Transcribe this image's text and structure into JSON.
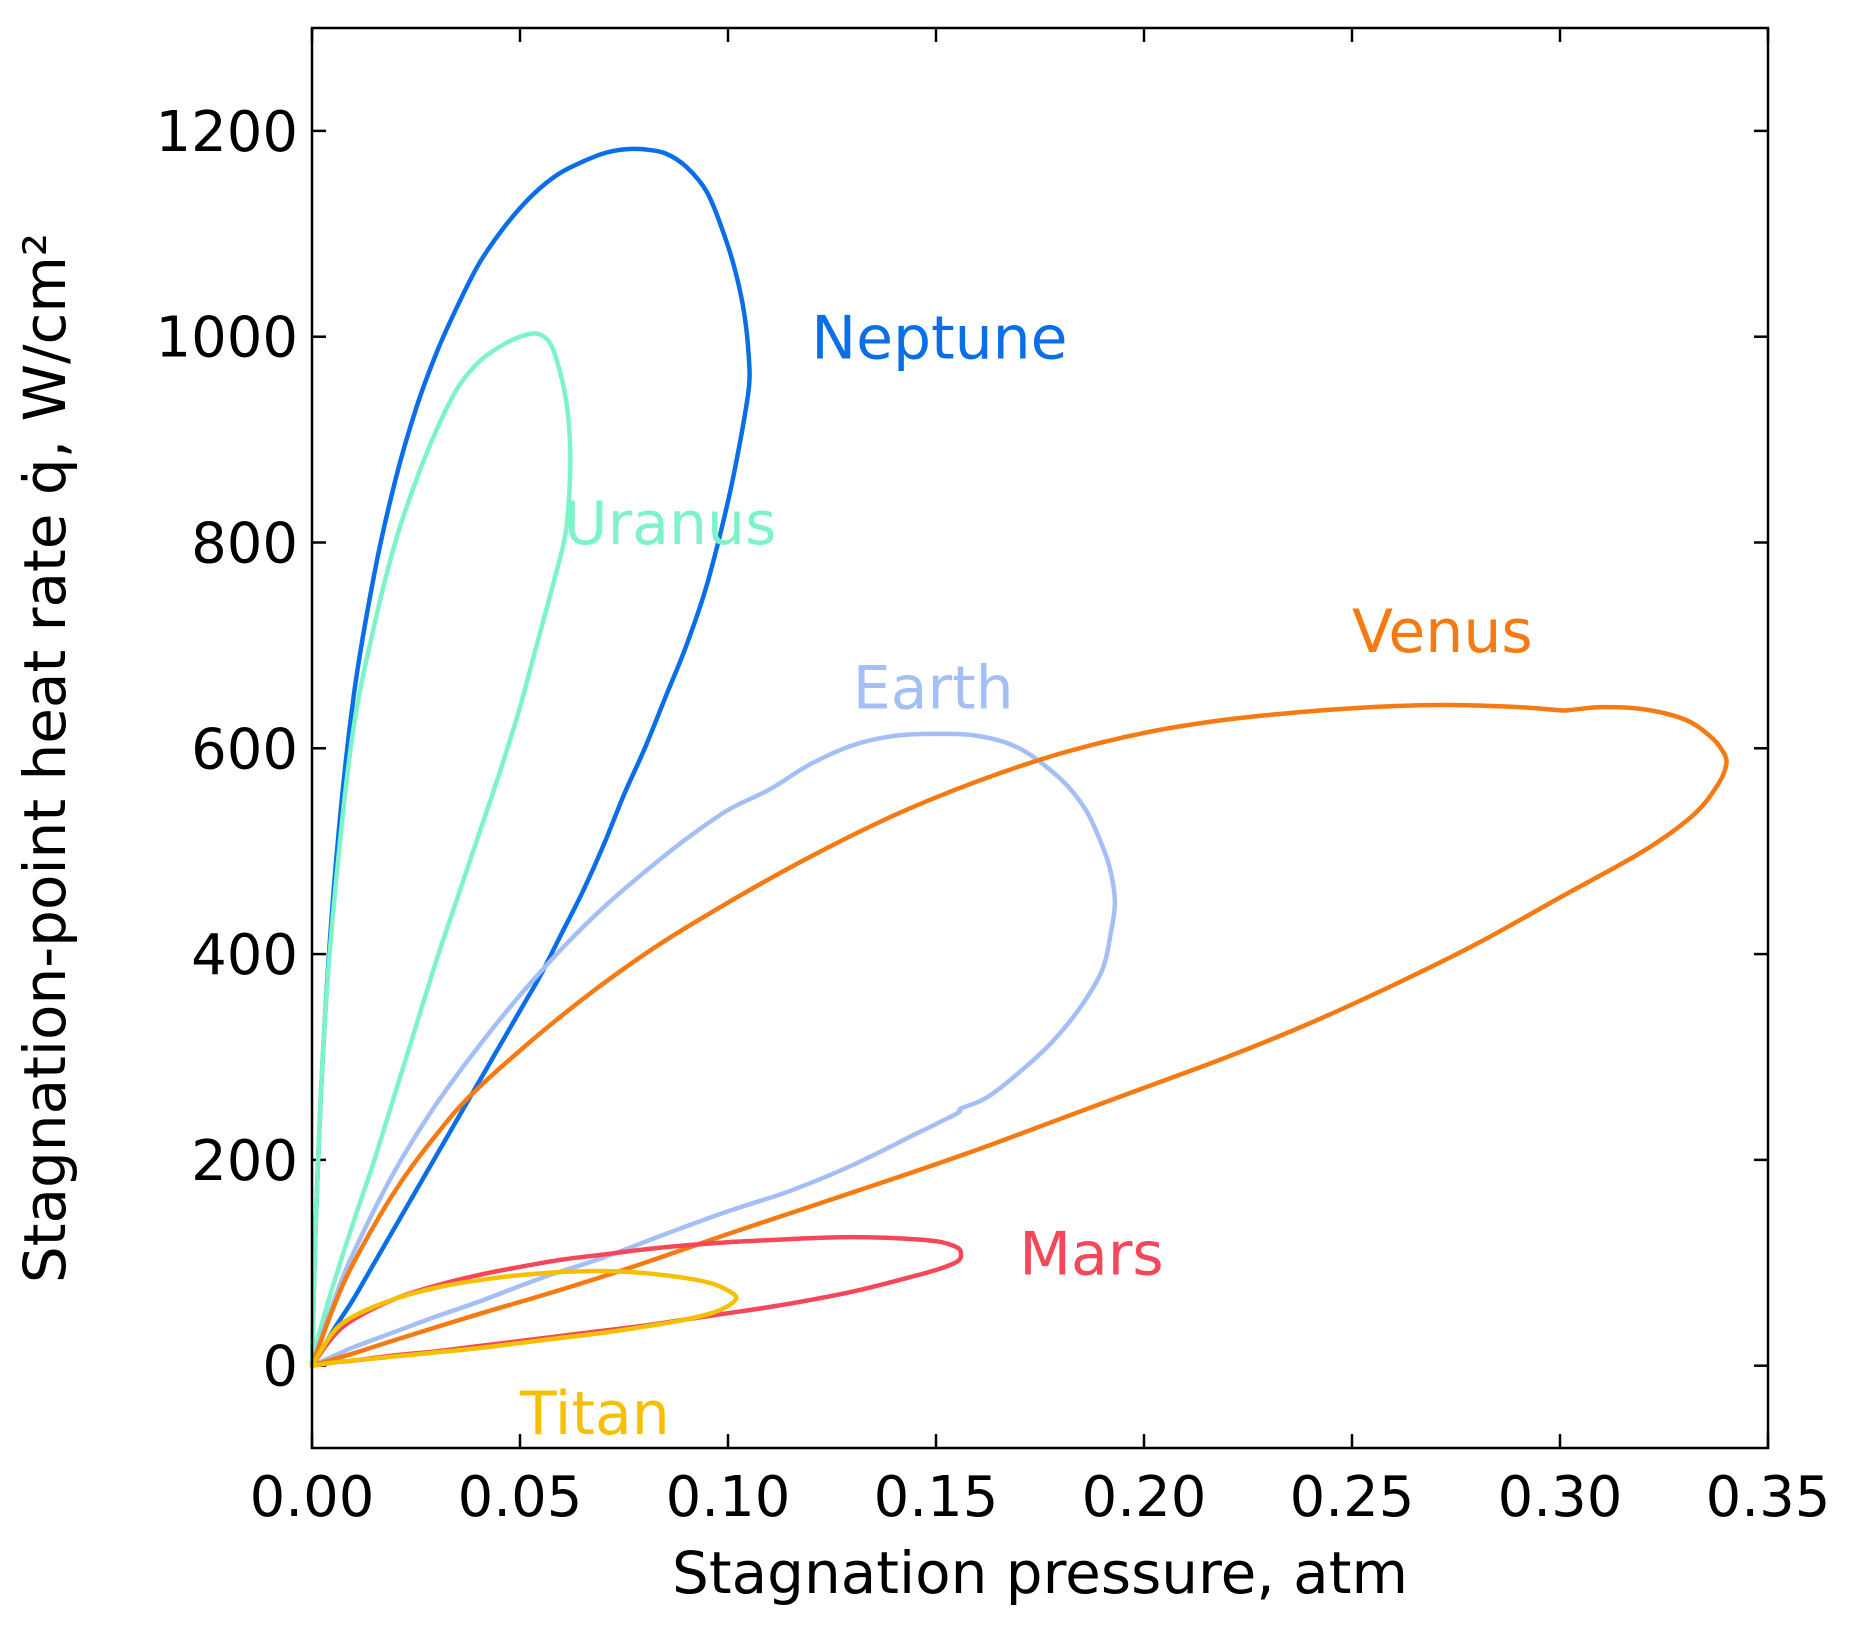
{
  "chart_data": {
    "type": "line",
    "xlabel": "Stagnation pressure, atm",
    "ylabel": "Stagnation-point heat rate q̇, W/cm²",
    "xlim": [
      0,
      0.35
    ],
    "ylim": [
      -80,
      1300
    ],
    "x_ticks": [
      0.0,
      0.05,
      0.1,
      0.15,
      0.2,
      0.25,
      0.3,
      0.35
    ],
    "x_tick_labels": [
      "0.00",
      "0.05",
      "0.10",
      "0.15",
      "0.20",
      "0.25",
      "0.30",
      "0.35"
    ],
    "y_ticks": [
      0,
      200,
      400,
      600,
      800,
      1000,
      1200
    ],
    "y_tick_labels": [
      "0",
      "200",
      "400",
      "600",
      "800",
      "1000",
      "1200"
    ],
    "grid": false,
    "series": [
      {
        "name": "Neptune",
        "color": "#0a6fe6",
        "label_at": [
          0.12,
          1000
        ],
        "x": [
          0,
          0.001,
          0.003,
          0.006,
          0.01,
          0.015,
          0.02,
          0.025,
          0.03,
          0.035,
          0.04,
          0.045,
          0.05,
          0.055,
          0.06,
          0.065,
          0.07,
          0.075,
          0.08,
          0.085,
          0.09,
          0.095,
          0.099,
          0.102,
          0.104,
          0.105,
          0.105,
          0.103,
          0.1,
          0.095,
          0.09,
          0.085,
          0.08,
          0.075,
          0.07,
          0.065,
          0.06,
          0.055,
          0.05,
          0.045,
          0.04,
          0.035,
          0.03,
          0.025,
          0.02,
          0.015,
          0.01,
          0.006,
          0.003,
          0.001,
          0
        ],
        "y": [
          0,
          150,
          330,
          500,
          650,
          770,
          860,
          930,
          985,
          1030,
          1070,
          1100,
          1125,
          1145,
          1160,
          1170,
          1178,
          1182,
          1182,
          1178,
          1165,
          1140,
          1100,
          1060,
          1020,
          980,
          950,
          900,
          840,
          760,
          700,
          650,
          600,
          555,
          505,
          460,
          420,
          380,
          345,
          310,
          275,
          240,
          205,
          170,
          135,
          100,
          65,
          40,
          20,
          8,
          0
        ]
      },
      {
        "name": "Uranus",
        "color": "#7df3c8",
        "label_at": [
          0.0605,
          820
        ],
        "x": [
          0,
          0.001,
          0.003,
          0.006,
          0.01,
          0.015,
          0.02,
          0.025,
          0.03,
          0.035,
          0.04,
          0.045,
          0.05,
          0.054,
          0.057,
          0.059,
          0.061,
          0.062,
          0.062,
          0.061,
          0.058,
          0.054,
          0.05,
          0.045,
          0.04,
          0.035,
          0.03,
          0.025,
          0.02,
          0.015,
          0.01,
          0.006,
          0.003,
          0.001,
          0
        ],
        "y": [
          0,
          150,
          330,
          480,
          620,
          720,
          800,
          860,
          910,
          950,
          975,
          990,
          1000,
          1003,
          995,
          975,
          940,
          900,
          860,
          810,
          760,
          700,
          640,
          575,
          515,
          455,
          395,
          330,
          265,
          200,
          140,
          90,
          50,
          20,
          0
        ]
      },
      {
        "name": "Earth",
        "color": "#a3bff5",
        "label_at": [
          0.13,
          660
        ],
        "x": [
          0,
          0.005,
          0.01,
          0.02,
          0.03,
          0.04,
          0.05,
          0.06,
          0.07,
          0.08,
          0.09,
          0.1,
          0.11,
          0.12,
          0.13,
          0.14,
          0.15,
          0.16,
          0.17,
          0.18,
          0.186,
          0.19,
          0.192,
          0.193,
          0.192,
          0.19,
          0.185,
          0.178,
          0.17,
          0.162,
          0.156,
          0.155,
          0.145,
          0.13,
          0.115,
          0.1,
          0.085,
          0.07,
          0.055,
          0.04,
          0.03,
          0.02,
          0.01,
          0.005,
          0
        ],
        "y": [
          0,
          60,
          110,
          190,
          255,
          310,
          360,
          405,
          445,
          480,
          512,
          540,
          560,
          585,
          603,
          612,
          614,
          612,
          600,
          570,
          540,
          505,
          480,
          450,
          420,
          385,
          350,
          315,
          285,
          260,
          250,
          245,
          225,
          195,
          170,
          150,
          128,
          105,
          85,
          62,
          48,
          33,
          18,
          9,
          0
        ]
      },
      {
        "name": "Venus",
        "color": "#f57a12",
        "label_at": [
          0.25,
          715
        ],
        "x": [
          0,
          0.005,
          0.01,
          0.02,
          0.03,
          0.04,
          0.06,
          0.08,
          0.1,
          0.12,
          0.14,
          0.16,
          0.18,
          0.2,
          0.22,
          0.24,
          0.26,
          0.275,
          0.29,
          0.3,
          0.302,
          0.31,
          0.32,
          0.33,
          0.336,
          0.339,
          0.34,
          0.338,
          0.332,
          0.32,
          0.3,
          0.28,
          0.26,
          0.24,
          0.22,
          0.2,
          0.18,
          0.16,
          0.14,
          0.12,
          0.1,
          0.08,
          0.06,
          0.04,
          0.02,
          0.01,
          0.005,
          0
        ],
        "y": [
          0,
          55,
          100,
          170,
          225,
          270,
          340,
          400,
          450,
          495,
          535,
          568,
          595,
          615,
          628,
          636,
          641,
          642,
          640,
          637,
          637,
          640,
          638,
          628,
          612,
          598,
          585,
          565,
          535,
          500,
          455,
          410,
          370,
          333,
          300,
          270,
          240,
          210,
          182,
          155,
          128,
          100,
          74,
          50,
          25,
          12,
          6,
          0
        ]
      },
      {
        "name": "Mars",
        "color": "#f5475a",
        "label_at": [
          0.17,
          110
        ],
        "x": [
          0,
          0.005,
          0.01,
          0.02,
          0.03,
          0.04,
          0.05,
          0.06,
          0.07,
          0.08,
          0.09,
          0.1,
          0.11,
          0.12,
          0.13,
          0.14,
          0.15,
          0.155,
          0.156,
          0.155,
          0.15,
          0.14,
          0.13,
          0.12,
          0.11,
          0.1,
          0.09,
          0.08,
          0.07,
          0.06,
          0.05,
          0.04,
          0.03,
          0.02,
          0.01,
          0.005,
          0
        ],
        "y": [
          0,
          28,
          45,
          65,
          78,
          88,
          96,
          103,
          108,
          113,
          117,
          120,
          122,
          124,
          125,
          124,
          121,
          115,
          108,
          101,
          93,
          82,
          72,
          64,
          57,
          51,
          45,
          39,
          34,
          29,
          24,
          19,
          14,
          10,
          5,
          3,
          0
        ]
      },
      {
        "name": "Titan",
        "color": "#f5c000",
        "label_at": [
          0.05,
          -45
        ],
        "x": [
          0,
          0.005,
          0.01,
          0.02,
          0.03,
          0.04,
          0.05,
          0.06,
          0.07,
          0.08,
          0.09,
          0.096,
          0.1,
          0.102,
          0.1,
          0.096,
          0.09,
          0.08,
          0.07,
          0.06,
          0.05,
          0.04,
          0.03,
          0.02,
          0.01,
          0.005,
          0
        ],
        "y": [
          0,
          32,
          48,
          65,
          76,
          83,
          88,
          91,
          92,
          90,
          85,
          80,
          73,
          66,
          58,
          51,
          45,
          38,
          32,
          27,
          22,
          17,
          13,
          9,
          5,
          3,
          0
        ]
      }
    ]
  }
}
